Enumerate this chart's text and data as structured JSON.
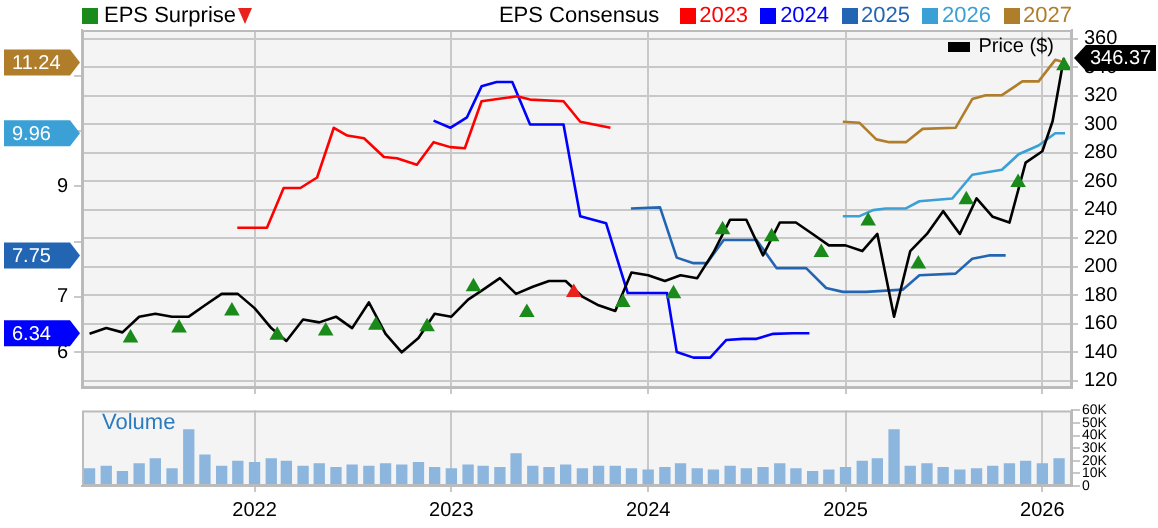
{
  "chart_data": [
    {
      "type": "line",
      "legend": "top",
      "annotations": [
        "11.24",
        "9.96",
        "7.75",
        "6.34",
        "346.37"
      ],
      "legend_title": "EPS Consensus",
      "grid": true,
      "tick_labels": "y",
      "xlim": [
        "2021-02-15",
        "2026-02-25"
      ],
      "xticks": [
        "2022",
        "2023",
        "2024",
        "2025",
        "2026"
      ],
      "ylim": [
        5.35,
        11.83
      ],
      "yticks": [
        6,
        7,
        {
          "value": 8,
          "label": null
        },
        9,
        {
          "value": 10,
          "label": null
        },
        {
          "value": 11,
          "label": null
        }
      ],
      "y2lim": [
        115,
        366
      ],
      "y2ticks": [
        120,
        140,
        160,
        180,
        200,
        220,
        240,
        260,
        280,
        300,
        320,
        340,
        360
      ],
      "series": [
        {
          "name": "EPS Surprise",
          "type": "scatter",
          "axis": "y2",
          "marker": "triangle",
          "color": "#1a8a1a",
          "x": [
            "2021-05-16",
            "2021-08-14",
            "2021-11-20",
            "2022-02-12",
            "2022-05-13",
            "2022-08-14",
            "2022-11-17",
            "2023-02-11",
            "2023-05-21",
            "2023-08-16",
            "2023-11-15",
            "2024-02-17",
            "2024-05-18",
            "2024-08-17",
            "2024-11-17",
            "2025-02-12",
            "2025-05-16",
            "2025-08-13",
            "2025-11-17",
            "2026-02-10"
          ],
          "values": [
            150,
            157,
            169,
            152,
            155,
            159,
            158,
            186,
            168,
            182,
            175,
            181,
            226,
            221,
            210,
            232,
            202,
            247,
            259,
            341
          ],
          "colors": [
            "#1a8a1a",
            "#1a8a1a",
            "#1a8a1a",
            "#1a8a1a",
            "#1a8a1a",
            "#1a8a1a",
            "#1a8a1a",
            "#1a8a1a",
            "#1a8a1a",
            "#e8201e",
            "#1a8a1a",
            "#1a8a1a",
            "#1a8a1a",
            "#1a8a1a",
            "#1a8a1a",
            "#1a8a1a",
            "#1a8a1a",
            "#1a8a1a",
            "#1a8a1a",
            "#1a8a1a"
          ]
        },
        {
          "name": "Price ($)",
          "color": "#000000",
          "axis": "y2",
          "marker": "none",
          "x": [
            "2021-03",
            "2021-04",
            "2021-05",
            "2021-06",
            "2021-07",
            "2021-08",
            "2021-09",
            "2021-10",
            "2021-11",
            "2021-12",
            "2022-01",
            "2022-02",
            "2022-03",
            "2022-04",
            "2022-05",
            "2022-06",
            "2022-07",
            "2022-08",
            "2022-09",
            "2022-10",
            "2022-11",
            "2022-12",
            "2023-01",
            "2023-02",
            "2023-03",
            "2023-04",
            "2023-05",
            "2023-06",
            "2023-07",
            "2023-08",
            "2023-09",
            "2023-10",
            "2023-11",
            "2023-12",
            "2024-01",
            "2024-02",
            "2024-03",
            "2024-04",
            "2024-05",
            "2024-06",
            "2024-07",
            "2024-08",
            "2024-09",
            "2024-10",
            "2024-11",
            "2024-12",
            "2025-01",
            "2025-02",
            "2025-03",
            "2025-04",
            "2025-05",
            "2025-06",
            "2025-07",
            "2025-08",
            "2025-09",
            "2025-10",
            "2025-11",
            "2025-12",
            "2026-01",
            "2026-01-20",
            "2026-02-10"
          ],
          "values": [
            153,
            157,
            154,
            165,
            167,
            165,
            165,
            173,
            181,
            181,
            171,
            157,
            148,
            163,
            161,
            165,
            157,
            175,
            153,
            140,
            150,
            167,
            165,
            177,
            184,
            192,
            181,
            186,
            190,
            190,
            179,
            173,
            169,
            196,
            194,
            190,
            194,
            192,
            210,
            233,
            233,
            208,
            231,
            231,
            223,
            215,
            215,
            211,
            223,
            165,
            211,
            223,
            239,
            223,
            248,
            235,
            231,
            273,
            281,
            302,
            346.37
          ]
        },
        {
          "name": "2023",
          "color": "#ff0000",
          "marker": "none",
          "x": [
            "2021-11-30",
            "2022-01-24",
            "2022-02-24",
            "2022-03-27",
            "2022-04-27",
            "2022-05-28",
            "2022-06-22",
            "2022-07-23",
            "2022-08-29",
            "2022-09-22",
            "2022-10-29",
            "2022-11-29",
            "2022-12-30",
            "2023-01-26",
            "2023-02-26",
            "2023-05-03",
            "2023-05-27",
            "2023-07-28",
            "2023-08-28",
            "2023-10-23"
          ],
          "values": [
            8.25,
            8.25,
            8.97,
            8.97,
            9.16,
            10.06,
            9.92,
            9.87,
            9.53,
            9.51,
            9.39,
            9.8,
            9.71,
            9.69,
            10.54,
            10.63,
            10.57,
            10.54,
            10.17,
            10.06
          ]
        },
        {
          "name": "2024",
          "color": "#0000ff",
          "marker": "none",
          "x": [
            "2022-11-29",
            "2022-12-30",
            "2023-01-30",
            "2023-02-26",
            "2023-03-26",
            "2023-04-24",
            "2023-05-27",
            "2023-07-28",
            "2023-08-28",
            "2023-10-15",
            "2023-11-24",
            "2024-02-05",
            "2024-02-23",
            "2024-03-25",
            "2024-04-25",
            "2024-05-25",
            "2024-06-25",
            "2024-07-20",
            "2024-08-20",
            "2024-09-25",
            "2024-10-26"
          ],
          "values": [
            10.19,
            10.06,
            10.25,
            10.81,
            10.89,
            10.89,
            10.12,
            10.12,
            8.46,
            8.33,
            7.07,
            7.07,
            6.0,
            5.9,
            5.9,
            6.22,
            6.24,
            6.24,
            6.33,
            6.34,
            6.34
          ]
        },
        {
          "name": "2025",
          "color": "#2266b3",
          "marker": "none",
          "x": [
            "2023-11-30",
            "2024-01-23",
            "2024-02-23",
            "2024-03-25",
            "2024-04-19",
            "2024-05-20",
            "2024-07-20",
            "2024-08-26",
            "2024-10-20",
            "2024-11-26",
            "2024-12-27",
            "2025-02-08",
            "2025-04-17",
            "2025-05-18",
            "2025-07-24",
            "2025-08-24",
            "2025-09-24",
            "2025-10-25"
          ],
          "values": [
            8.6,
            8.62,
            7.71,
            7.61,
            7.61,
            8.03,
            8.03,
            7.52,
            7.52,
            7.16,
            7.09,
            7.09,
            7.13,
            7.39,
            7.42,
            7.69,
            7.75,
            7.75
          ]
        },
        {
          "name": "2026",
          "color": "#3ba0d5",
          "marker": "none",
          "x": [
            "2024-12-27",
            "2025-01-27",
            "2025-02-21",
            "2025-03-17",
            "2025-04-23",
            "2025-05-18",
            "2025-07-18",
            "2025-08-24",
            "2025-10-18",
            "2025-11-18",
            "2025-12-25",
            "2026-01-25",
            "2026-02-12"
          ],
          "values": [
            8.46,
            8.46,
            8.57,
            8.6,
            8.6,
            8.73,
            8.78,
            9.21,
            9.3,
            9.58,
            9.74,
            9.96,
            9.96
          ]
        },
        {
          "name": "2027",
          "color": "#b07d2b",
          "marker": "none",
          "x": [
            "2024-12-27",
            "2025-01-27",
            "2025-02-27",
            "2025-03-23",
            "2025-04-23",
            "2025-05-24",
            "2025-07-24",
            "2025-08-24",
            "2025-09-18",
            "2025-10-18",
            "2025-11-25",
            "2025-12-25",
            "2026-01-25",
            "2026-02-12"
          ],
          "values": [
            10.17,
            10.15,
            9.85,
            9.8,
            9.8,
            10.04,
            10.06,
            10.58,
            10.65,
            10.65,
            10.9,
            10.9,
            11.29,
            11.24
          ]
        }
      ]
    },
    {
      "type": "bar",
      "title": "Volume",
      "grid": "x",
      "color": "#8cb6de",
      "xlim": [
        "2021-02-15",
        "2026-02-25"
      ],
      "xticks": [
        "2022",
        "2023",
        "2024",
        "2025",
        "2026"
      ],
      "ylim": [
        0,
        60000
      ],
      "yticks": [
        0,
        {
          "value": 10000,
          "label": "10K"
        },
        {
          "value": 20000,
          "label": "20K"
        },
        {
          "value": 30000,
          "label": "30K"
        },
        {
          "value": 40000,
          "label": "40K"
        },
        {
          "value": 50000,
          "label": "50K"
        },
        {
          "value": 60000,
          "label": "60K"
        }
      ],
      "x": [
        "2021-03",
        "2021-04",
        "2021-05",
        "2021-06",
        "2021-07",
        "2021-08",
        "2021-09",
        "2021-10",
        "2021-11",
        "2021-12",
        "2022-01",
        "2022-02",
        "2022-03",
        "2022-04",
        "2022-05",
        "2022-06",
        "2022-07",
        "2022-08",
        "2022-09",
        "2022-10",
        "2022-11",
        "2022-12",
        "2023-01",
        "2023-02",
        "2023-03",
        "2023-04",
        "2023-05",
        "2023-06",
        "2023-07",
        "2023-08",
        "2023-09",
        "2023-10",
        "2023-11",
        "2023-12",
        "2024-01",
        "2024-02",
        "2024-03",
        "2024-04",
        "2024-05",
        "2024-06",
        "2024-07",
        "2024-08",
        "2024-09",
        "2024-10",
        "2024-11",
        "2024-12",
        "2025-01",
        "2025-02",
        "2025-03",
        "2025-04",
        "2025-05",
        "2025-06",
        "2025-07",
        "2025-08",
        "2025-09",
        "2025-10",
        "2025-11",
        "2025-12",
        "2026-01",
        "2026-02"
      ],
      "values": [
        14000,
        16000,
        12000,
        18000,
        22000,
        14000,
        45000,
        25000,
        16000,
        20000,
        19000,
        22000,
        20000,
        16000,
        18000,
        15000,
        17000,
        16000,
        18000,
        17000,
        19000,
        15000,
        14000,
        17000,
        16000,
        15000,
        26000,
        16000,
        15000,
        17000,
        14000,
        16000,
        16000,
        14000,
        13000,
        15000,
        18000,
        14000,
        13000,
        16000,
        14000,
        15000,
        18000,
        14000,
        12000,
        13000,
        15000,
        20000,
        22000,
        45000,
        16000,
        18000,
        15000,
        13000,
        14000,
        16000,
        18000,
        20000,
        18000,
        22000
      ]
    }
  ]
}
